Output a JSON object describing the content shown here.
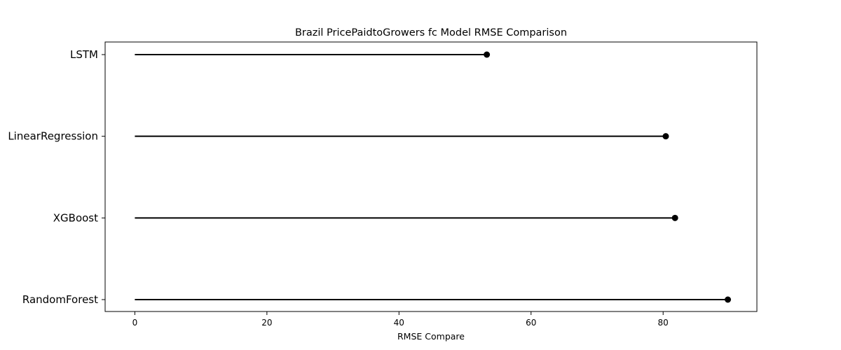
{
  "chart_data": {
    "type": "lollipop",
    "title": "Brazil PricePaidtoGrowers fc Model RMSE Comparison",
    "xlabel": "RMSE Compare",
    "ylabel": "",
    "xlim": [
      -4.5,
      94.2
    ],
    "xticks": [
      0,
      20,
      40,
      60,
      80
    ],
    "grid": false,
    "categories": [
      "LSTM",
      "LinearRegression",
      "XGBoost",
      "RandomForest"
    ],
    "values": [
      53.3,
      80.4,
      81.8,
      89.8
    ],
    "color": "#000000"
  }
}
